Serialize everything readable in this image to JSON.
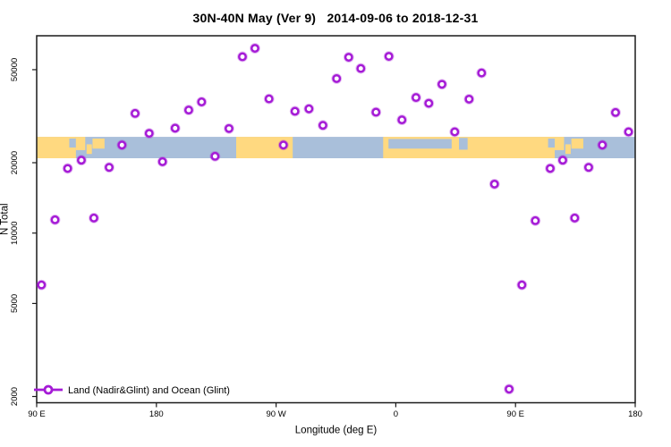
{
  "title": "30N-40N May (Ver 9)   2014-09-06 to 2018-12-31",
  "axes": {
    "x": {
      "label": "Longitude (deg E)",
      "ticks": [
        {
          "lon": 90,
          "label": "90 E"
        },
        {
          "lon": 180,
          "label": "180"
        },
        {
          "lon": 270,
          "label": "90 W"
        },
        {
          "lon": 360,
          "label": "0"
        },
        {
          "lon": 450,
          "label": "90 E"
        },
        {
          "lon": 540,
          "label": "180"
        }
      ]
    },
    "y": {
      "label": "N Total",
      "scale": "log",
      "ticks": [
        {
          "value": 50000,
          "label": "50000"
        },
        {
          "value": 20000,
          "label": "20000"
        },
        {
          "value": 10000,
          "label": "10000"
        },
        {
          "value": 5000,
          "label": "5000"
        },
        {
          "value": 2000,
          "label": "2000"
        }
      ]
    }
  },
  "legend": {
    "label": "Land (Nadir&Glint) and Ocean (Glint)"
  },
  "colors": {
    "point": "#A51BD6",
    "point_halo": "rgba(165,27,214,0.30)",
    "land": "#FFD980",
    "ocean": "#A9BFDA",
    "axis": "#1a1a1a",
    "text": "#000000"
  },
  "map_band": {
    "note": "world map strip of the 30N-40N latitude band drawn across N = 20900 to 25800",
    "n_range": [
      20900,
      25800
    ],
    "land_segments": [
      {
        "name": "asia-land",
        "lon": [
          90,
          119.5
        ]
      },
      {
        "name": "north-america-land",
        "lon": [
          240,
          282.5
        ]
      },
      {
        "name": "africa-eurasia-land",
        "lon": [
          350.5,
          479.5
        ]
      }
    ],
    "sea_patches": [
      {
        "name": "yellow-sea-west",
        "lon": [
          114.5,
          119.5
        ],
        "frac": [
          0.08,
          0.5
        ]
      },
      {
        "name": "mediterranean-sea",
        "lon": [
          354.5,
          402
        ],
        "frac": [
          0.1,
          0.55
        ]
      },
      {
        "name": "caspian-sea",
        "lon": [
          407.5,
          414
        ],
        "frac": [
          0.05,
          0.6
        ]
      },
      {
        "name": "yellow-sea-east",
        "lon": [
          474.5,
          479.5
        ],
        "frac": [
          0.08,
          0.5
        ]
      }
    ],
    "land_patches": [
      {
        "name": "korea-west",
        "lon": [
          119.5,
          126.5
        ],
        "frac": [
          0,
          0.62
        ]
      },
      {
        "name": "kyushu-west",
        "lon": [
          127.5,
          131.5
        ],
        "frac": [
          0.35,
          0.8
        ]
      },
      {
        "name": "honshu-west",
        "lon": [
          132,
          141
        ],
        "frac": [
          0.08,
          0.55
        ]
      },
      {
        "name": "korea-east",
        "lon": [
          479.5,
          486.5
        ],
        "frac": [
          0,
          0.62
        ]
      },
      {
        "name": "kyushu-east",
        "lon": [
          487.5,
          491.5
        ],
        "frac": [
          0.35,
          0.8
        ]
      },
      {
        "name": "honshu-east",
        "lon": [
          492,
          501
        ],
        "frac": [
          0.08,
          0.55
        ]
      }
    ]
  },
  "chart_data": {
    "type": "scatter",
    "title": "30N-40N May (Ver 9)   2014-09-06 to 2018-12-31",
    "xlabel": "Longitude (deg E)",
    "ylabel": "N Total",
    "x_axis": {
      "range_deg_east": [
        90,
        540
      ],
      "tick_labels": [
        "90 E",
        "180",
        "90 W",
        "0",
        "90 E",
        "180"
      ],
      "wraps_dateline": true
    },
    "y_axis": {
      "scale": "log",
      "range": [
        1850,
        70000
      ],
      "tick_values": [
        2000,
        5000,
        10000,
        20000,
        50000
      ]
    },
    "legend_position": "bottom-left",
    "series_name": "Land (Nadir&Glint) and Ocean (Glint)",
    "points": [
      {
        "lon": 93.6,
        "n": 6000
      },
      {
        "lon": 103.8,
        "n": 11400
      },
      {
        "lon": 113.3,
        "n": 18900
      },
      {
        "lon": 123.6,
        "n": 20500
      },
      {
        "lon": 133.0,
        "n": 11600
      },
      {
        "lon": 144.5,
        "n": 19100
      },
      {
        "lon": 154.1,
        "n": 23800
      },
      {
        "lon": 164.0,
        "n": 32500
      },
      {
        "lon": 174.6,
        "n": 26700
      },
      {
        "lon": 184.6,
        "n": 20200
      },
      {
        "lon": 194.1,
        "n": 28100
      },
      {
        "lon": 204.3,
        "n": 33600
      },
      {
        "lon": 214.0,
        "n": 36400
      },
      {
        "lon": 224.1,
        "n": 21300
      },
      {
        "lon": 234.6,
        "n": 28000
      },
      {
        "lon": 244.7,
        "n": 56800
      },
      {
        "lon": 254.1,
        "n": 61700
      },
      {
        "lon": 264.7,
        "n": 37500
      },
      {
        "lon": 275.5,
        "n": 23800
      },
      {
        "lon": 284.2,
        "n": 33200
      },
      {
        "lon": 294.7,
        "n": 34000
      },
      {
        "lon": 305.2,
        "n": 28900
      },
      {
        "lon": 315.5,
        "n": 45800
      },
      {
        "lon": 324.6,
        "n": 56500
      },
      {
        "lon": 333.7,
        "n": 50600
      },
      {
        "lon": 345.1,
        "n": 32900
      },
      {
        "lon": 354.8,
        "n": 57000
      },
      {
        "lon": 364.6,
        "n": 30500
      },
      {
        "lon": 375.2,
        "n": 38000
      },
      {
        "lon": 384.8,
        "n": 35900
      },
      {
        "lon": 394.7,
        "n": 43300
      },
      {
        "lon": 404.3,
        "n": 27100
      },
      {
        "lon": 415.1,
        "n": 37400
      },
      {
        "lon": 424.5,
        "n": 48400
      },
      {
        "lon": 434.2,
        "n": 16200
      },
      {
        "lon": 445.2,
        "n": 2150
      },
      {
        "lon": 454.8,
        "n": 6000
      },
      {
        "lon": 464.9,
        "n": 11300
      },
      {
        "lon": 476.1,
        "n": 18900
      },
      {
        "lon": 485.5,
        "n": 20500
      },
      {
        "lon": 494.5,
        "n": 11600
      },
      {
        "lon": 505.0,
        "n": 19100
      },
      {
        "lon": 515.3,
        "n": 23800
      },
      {
        "lon": 525.2,
        "n": 32800
      },
      {
        "lon": 535.0,
        "n": 27100
      }
    ]
  }
}
